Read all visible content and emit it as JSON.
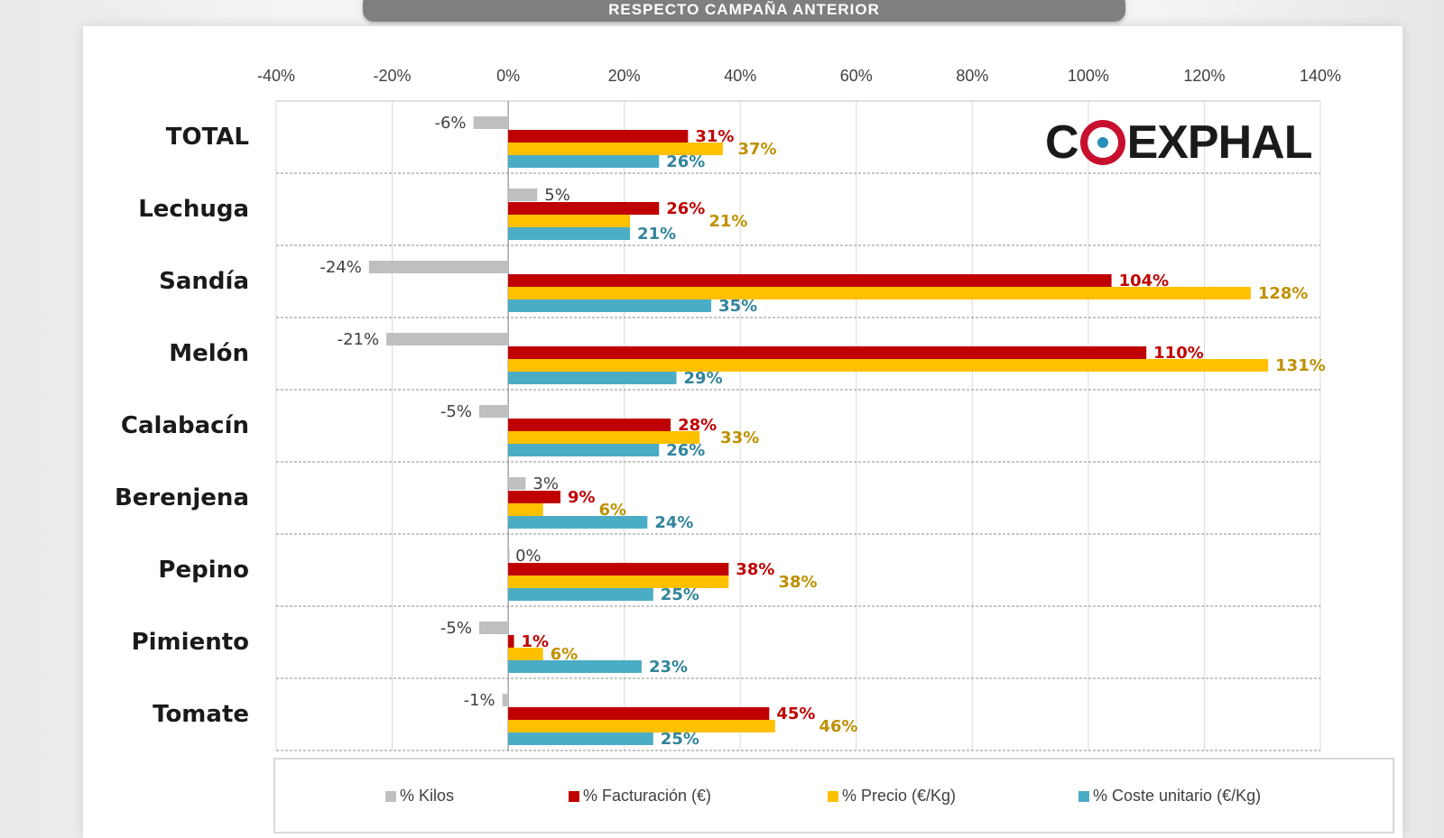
{
  "banner": {
    "text": "RESPECTO CAMPAÑA ANTERIOR"
  },
  "logo": {
    "text": "COEXPHAL"
  },
  "chart_data": {
    "type": "bar",
    "orientation": "horizontal",
    "categories": [
      "TOTAL",
      "Lechuga",
      "Sandía",
      "Melón",
      "Calabacín",
      "Berenjena",
      "Pepino",
      "Pimiento",
      "Tomate"
    ],
    "x_ticks": [
      "-40%",
      "-20%",
      "0%",
      "20%",
      "40%",
      "60%",
      "80%",
      "100%",
      "120%",
      "140%"
    ],
    "xlim": [
      -40,
      140
    ],
    "grid": "horizontal dashed separators between categories; vertical gridlines at each tick",
    "legend_position": "bottom",
    "series": [
      {
        "name": "% Kilos",
        "color": "#bfbfbf",
        "label_color": "#404040",
        "values": [
          -6,
          5,
          -24,
          -21,
          -5,
          3,
          0,
          -5,
          -1
        ]
      },
      {
        "name": "% Facturación (€)",
        "color": "#c00000",
        "label_color": "#c00000",
        "values": [
          31,
          26,
          104,
          110,
          28,
          9,
          38,
          1,
          45
        ]
      },
      {
        "name": "% Precio (€/Kg)",
        "color": "#ffc000",
        "label_color": "#bf9000",
        "values": [
          37,
          21,
          128,
          131,
          33,
          6,
          38,
          6,
          46
        ]
      },
      {
        "name": "% Coste unitario (€/Kg)",
        "color": "#4bacc6",
        "label_color": "#31849b",
        "values": [
          26,
          21,
          35,
          29,
          26,
          24,
          25,
          23,
          25
        ]
      }
    ]
  }
}
